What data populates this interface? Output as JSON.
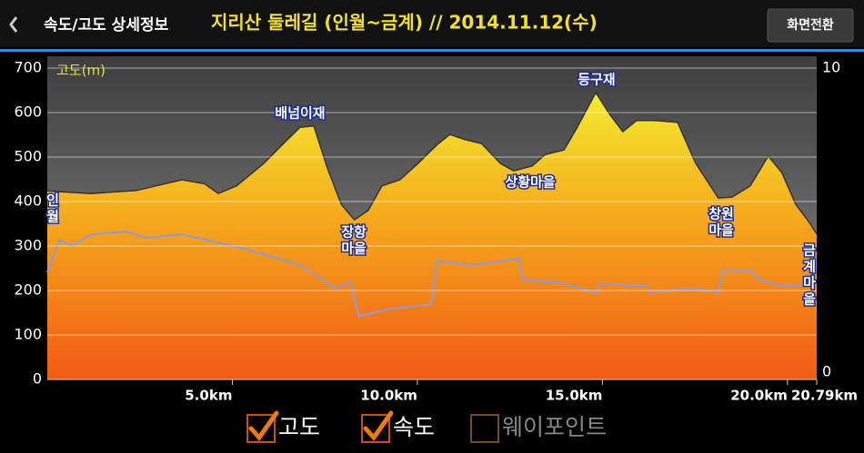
{
  "header": {
    "title": "속도/고도 상세정보",
    "subtitle": "지리산 둘레길 (인월~금계) // 2014.11.12(수)",
    "button": "화면전환"
  },
  "chart_data": {
    "type": "area-line",
    "ylabel": "고도(m)",
    "xlim": [
      0,
      20.79
    ],
    "xticks": [
      {
        "value": 5,
        "label": "5.0km"
      },
      {
        "value": 10,
        "label": "10.0km"
      },
      {
        "value": 15,
        "label": "15.0km"
      },
      {
        "value": 20,
        "label": "20.0km"
      },
      {
        "value": 20.79,
        "label": "20.79km"
      }
    ],
    "ylim": [
      0,
      700
    ],
    "yticks": [
      0,
      100,
      200,
      300,
      400,
      500,
      600,
      700
    ],
    "y2lim": [
      0,
      10
    ],
    "y2ticks": [
      0,
      10
    ],
    "grid": true,
    "series": [
      {
        "name": "고도",
        "color": "#f0c820",
        "x": [
          0,
          1.18,
          2.41,
          3.64,
          4.25,
          4.62,
          5.11,
          5.85,
          6.34,
          6.83,
          7.2,
          7.57,
          7.94,
          8.3,
          8.67,
          9.04,
          9.53,
          10.02,
          10.52,
          10.88,
          11.25,
          11.74,
          12.24,
          12.6,
          13.1,
          13.46,
          13.96,
          14.32,
          14.82,
          15.18,
          15.55,
          15.92,
          16.41,
          17.03,
          17.52,
          18.13,
          18.5,
          18.99,
          19.48,
          19.85,
          20.22,
          20.59,
          20.79
        ],
        "values": [
          424,
          418,
          425,
          449,
          440,
          418,
          435,
          486,
          527,
          567,
          570,
          475,
          394,
          359,
          380,
          435,
          449,
          486,
          527,
          551,
          540,
          530,
          486,
          469,
          480,
          506,
          516,
          567,
          645,
          598,
          557,
          582,
          582,
          578,
          486,
          408,
          410,
          435,
          502,
          465,
          394,
          353,
          327
        ]
      },
      {
        "name": "속도",
        "color": "#8a9ae8",
        "axis": "y2",
        "x": [
          0,
          0.32,
          0.69,
          1.18,
          2.16,
          2.65,
          3.64,
          4.37,
          5.11,
          5.85,
          6.83,
          7.32,
          7.81,
          8.18,
          8.42,
          9.28,
          10.39,
          10.52,
          11.5,
          12.73,
          12.85,
          13.96,
          14.82,
          14.94,
          16.17,
          16.29,
          17.4,
          18.13,
          18.26,
          19.0,
          19.23,
          19.85,
          20.79
        ],
        "values": [
          3.44,
          4.46,
          4.31,
          4.66,
          4.75,
          4.55,
          4.66,
          4.46,
          4.26,
          4.02,
          3.67,
          3.29,
          2.92,
          3.15,
          2.04,
          2.27,
          2.42,
          3.82,
          3.67,
          3.88,
          3.21,
          3.09,
          2.77,
          3.09,
          3.0,
          2.8,
          2.92,
          2.8,
          3.5,
          3.5,
          3.21,
          3.0,
          3.09
        ]
      }
    ],
    "annotations": [
      {
        "lines": [
          "인",
          "월"
        ]
      },
      {
        "lines": [
          "배넘이재"
        ]
      },
      {
        "lines": [
          "장항",
          "마을"
        ]
      },
      {
        "lines": [
          "상황마을"
        ]
      },
      {
        "lines": [
          "등구재"
        ]
      },
      {
        "lines": [
          "창원",
          "마을"
        ]
      },
      {
        "lines": [
          "금",
          "계",
          "마",
          "을"
        ]
      }
    ],
    "waypoint_label": "웨이포인트"
  }
}
